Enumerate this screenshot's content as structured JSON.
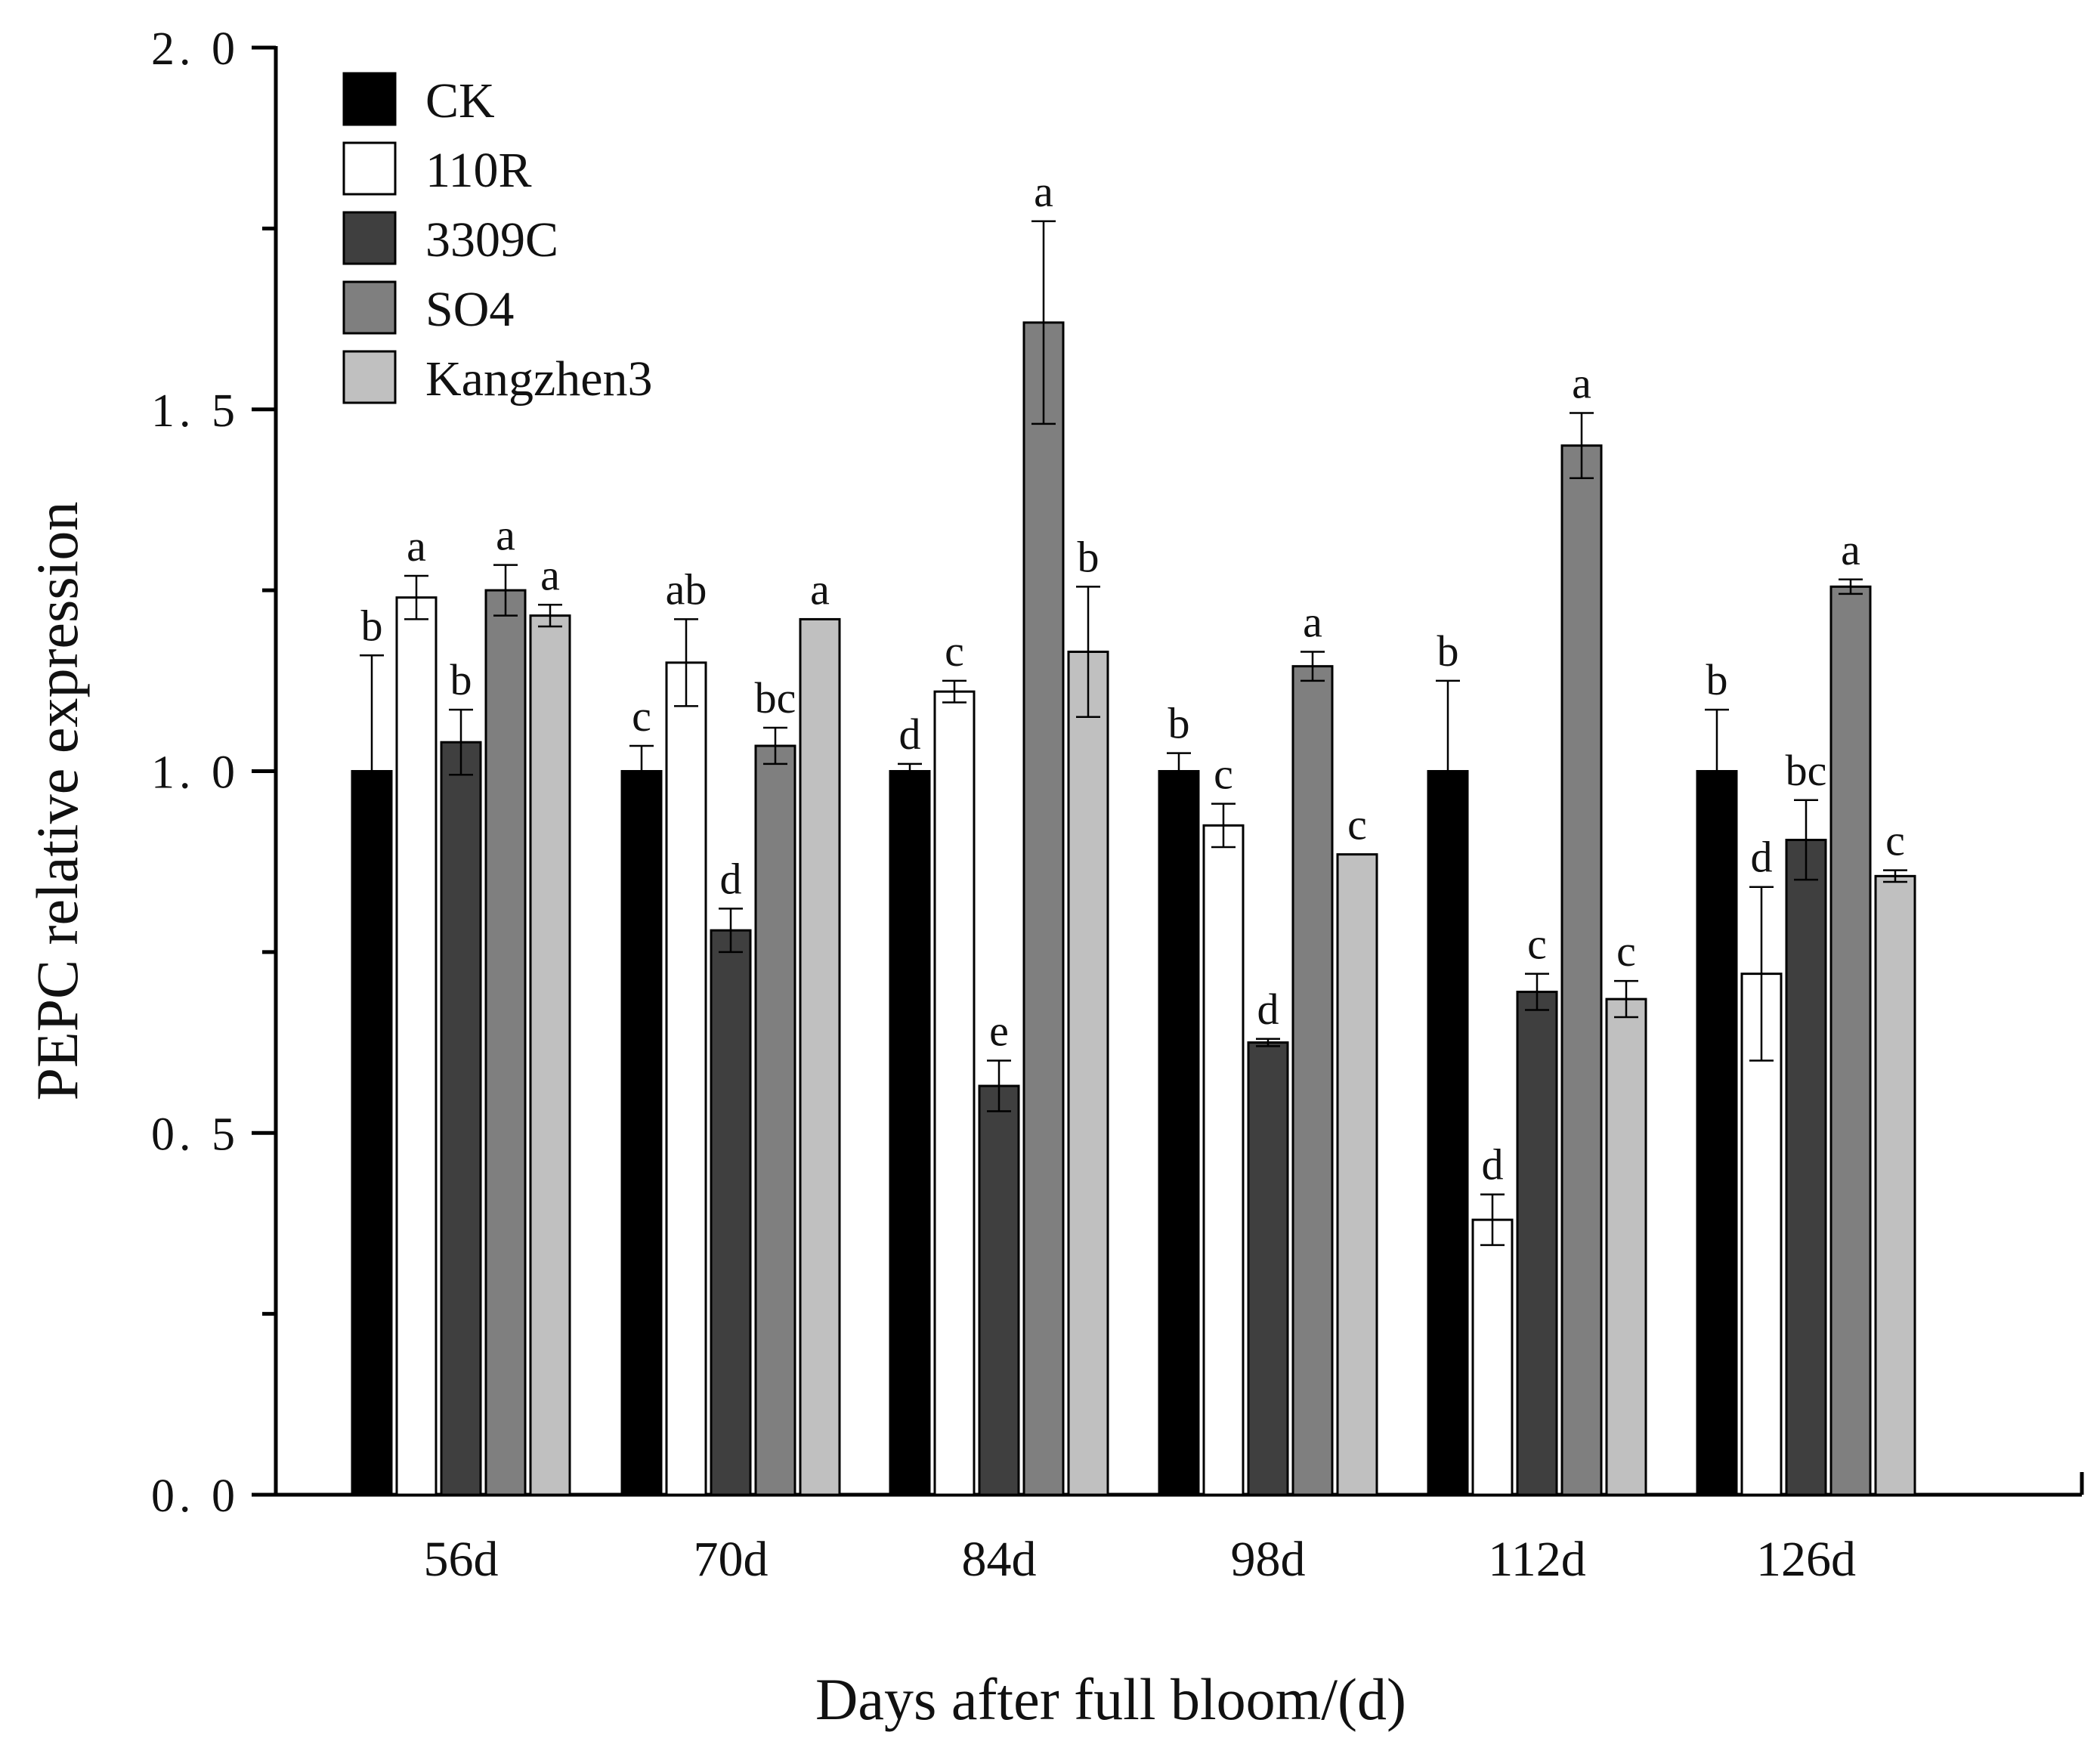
{
  "chart_data": {
    "type": "bar",
    "xlabel": "Days after full bloom/(d)",
    "ylabel": "PEPC relative expression",
    "ylim": [
      0,
      2.0
    ],
    "yticks": [
      "0. 0",
      "0. 5",
      "1. 0",
      "1. 5",
      "2. 0"
    ],
    "grid": false,
    "legend_position": "top-left",
    "categories": [
      "56d",
      "70d",
      "84d",
      "98d",
      "112d",
      "126d"
    ],
    "series": [
      {
        "name": "CK",
        "color": "#000000",
        "values": [
          1.0,
          1.0,
          1.0,
          1.0,
          1.0,
          1.0
        ],
        "errors": [
          0.16,
          0.035,
          0.01,
          0.025,
          0.125,
          0.085
        ],
        "significance": [
          "b",
          "c",
          "d",
          "b",
          "b",
          "b"
        ]
      },
      {
        "name": "110R",
        "color": "#ffffff",
        "values": [
          1.24,
          1.15,
          1.11,
          0.925,
          0.38,
          0.72
        ],
        "errors": [
          0.03,
          0.06,
          0.015,
          0.03,
          0.035,
          0.12
        ],
        "significance": [
          "a",
          "ab",
          "c",
          "c",
          "d",
          "d"
        ]
      },
      {
        "name": "3309C",
        "color": "#3f3f3f",
        "values": [
          1.04,
          0.78,
          0.565,
          0.625,
          0.695,
          0.905
        ],
        "errors": [
          0.045,
          0.03,
          0.035,
          0.005,
          0.025,
          0.055
        ],
        "significance": [
          "b",
          "d",
          "e",
          "d",
          "c",
          "bc"
        ]
      },
      {
        "name": "SO4",
        "color": "#7f7f7f",
        "values": [
          1.25,
          1.035,
          1.62,
          1.145,
          1.45,
          1.255
        ],
        "errors": [
          0.035,
          0.025,
          0.14,
          0.02,
          0.045,
          0.01
        ],
        "significance": [
          "a",
          "bc",
          "a",
          "a",
          "a",
          "a"
        ]
      },
      {
        "name": "Kangzhen3",
        "color": "#c0c0c0",
        "values": [
          1.215,
          1.21,
          1.165,
          0.885,
          0.685,
          0.855
        ],
        "errors": [
          0.015,
          0.0,
          0.09,
          0.0,
          0.025,
          0.008
        ],
        "significance": [
          "a",
          "a",
          "b",
          "c",
          "c",
          "c"
        ]
      }
    ]
  }
}
